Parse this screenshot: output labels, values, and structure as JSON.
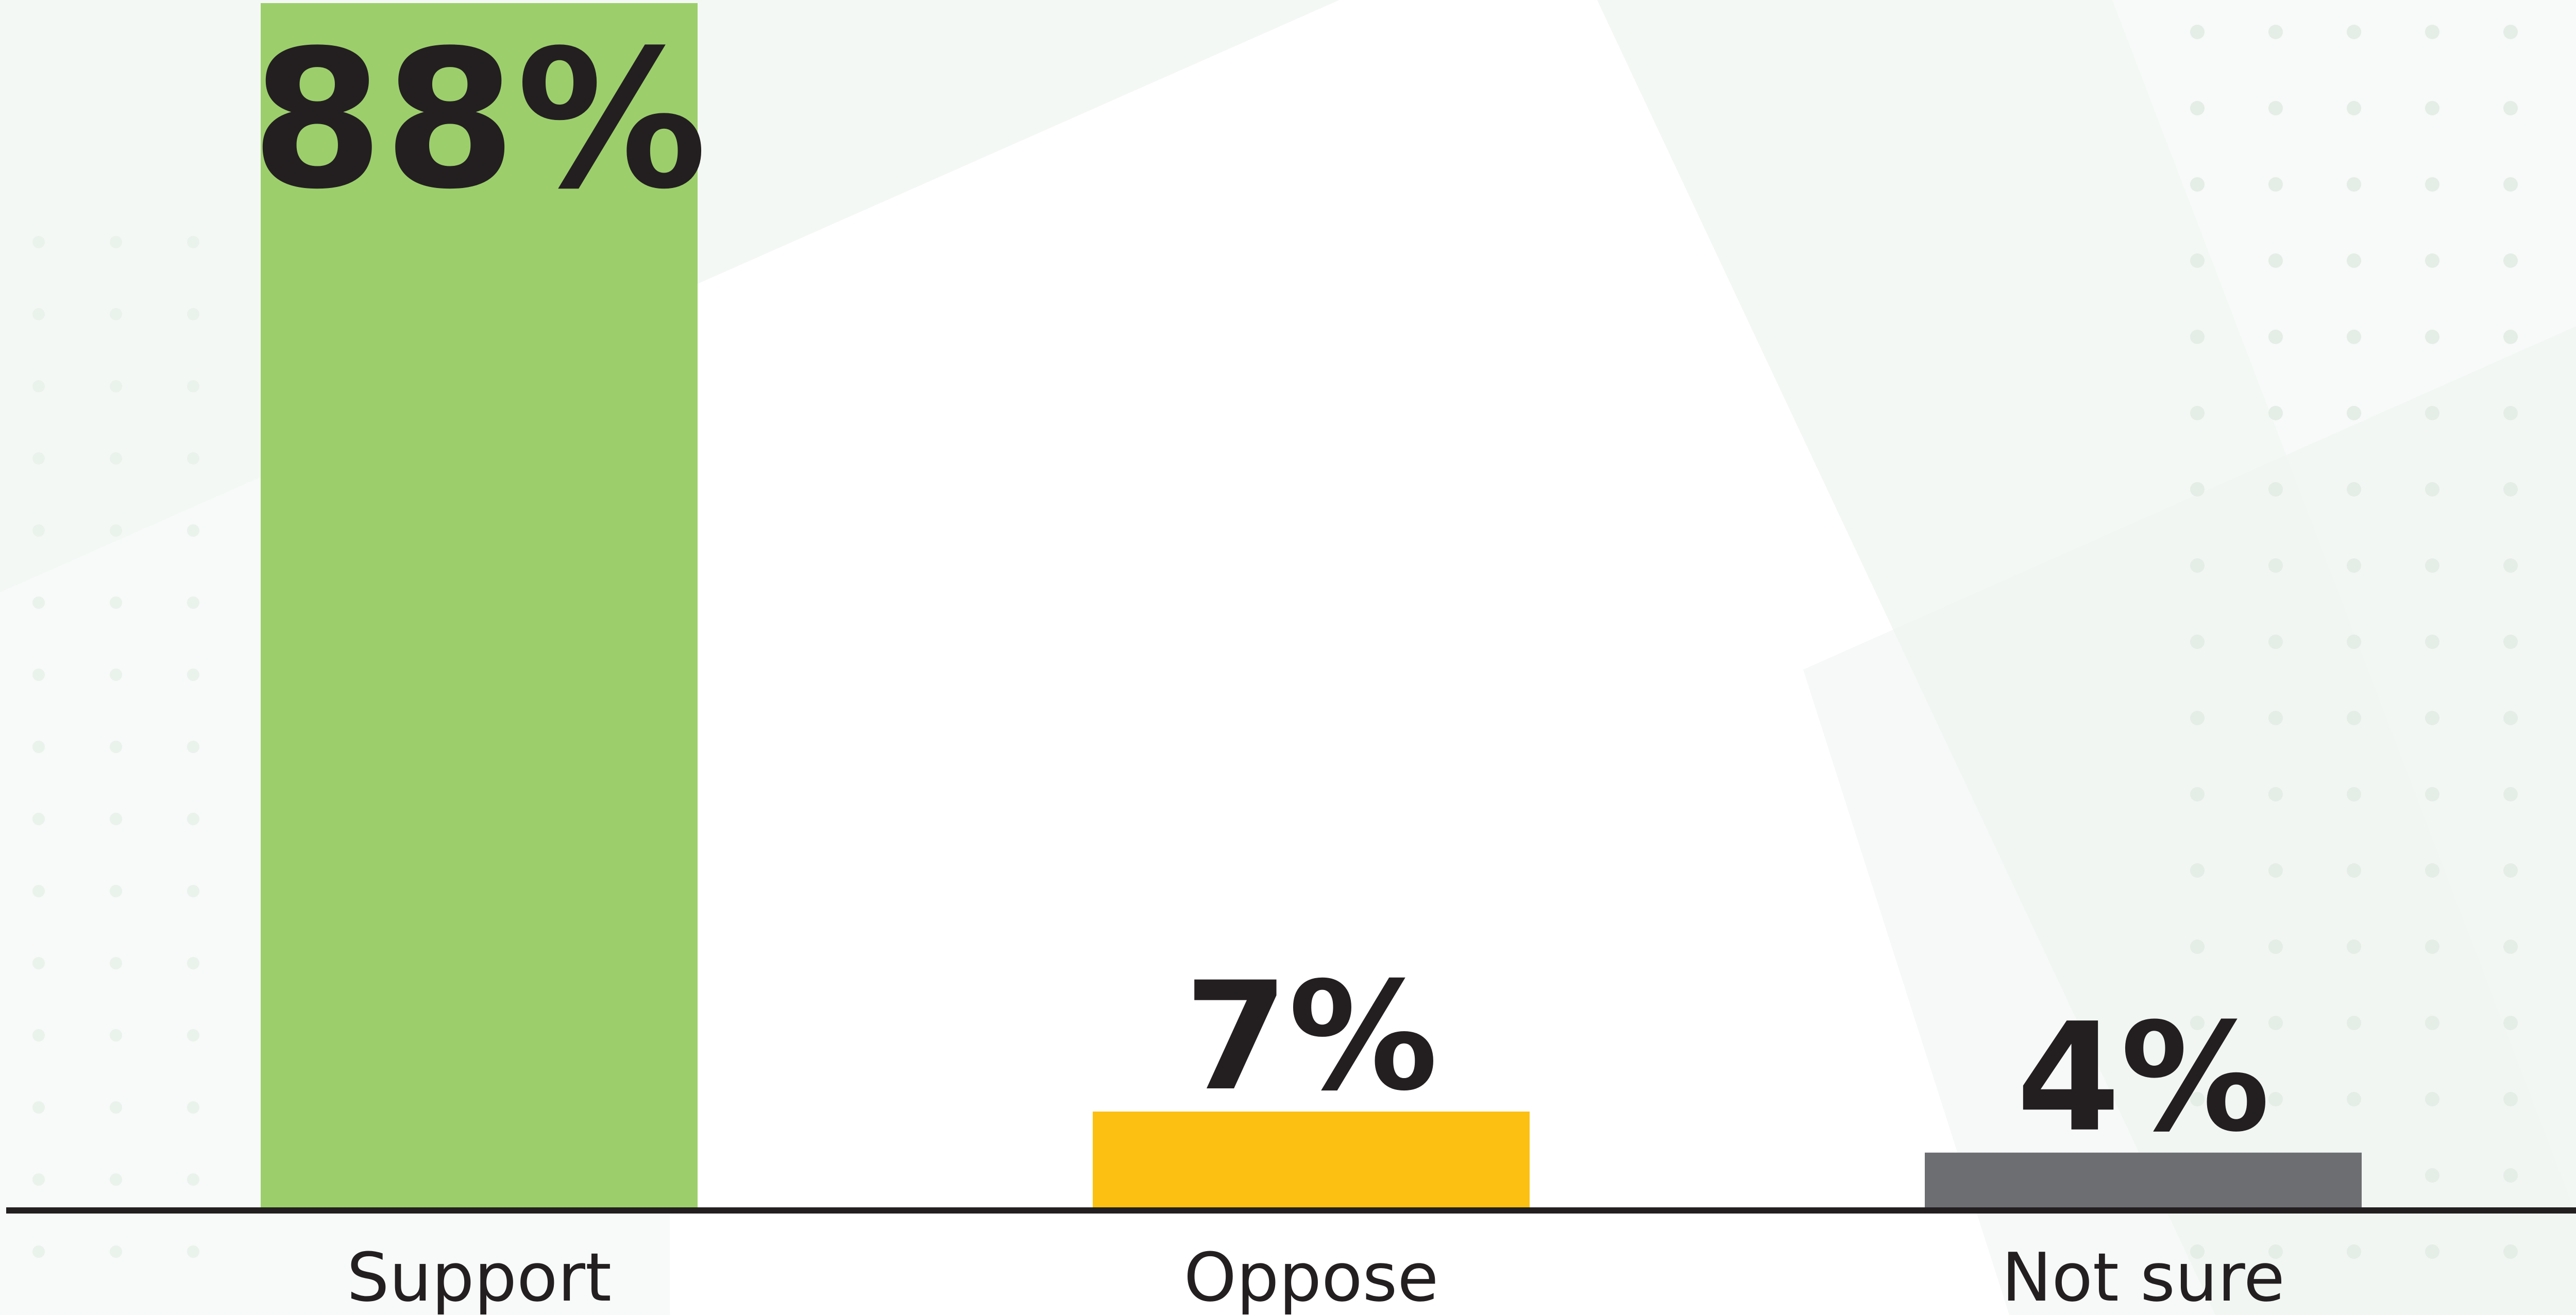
{
  "chart_data": {
    "type": "bar",
    "categories": [
      "Support",
      "Oppose",
      "Not sure"
    ],
    "values": [
      88,
      7,
      4
    ],
    "value_labels": [
      "88%",
      "7%",
      "4%"
    ],
    "unit": "%",
    "colors": [
      "#9ccf6c",
      "#fcc013",
      "#6d6e71"
    ],
    "ylim": [
      0,
      88
    ],
    "grid": false,
    "legend": "none",
    "title": "",
    "xlabel": "",
    "ylabel": ""
  },
  "style": {
    "axis_color": "#231f20",
    "text_color": "#231f20",
    "background_tint": "#e8f1ea"
  }
}
